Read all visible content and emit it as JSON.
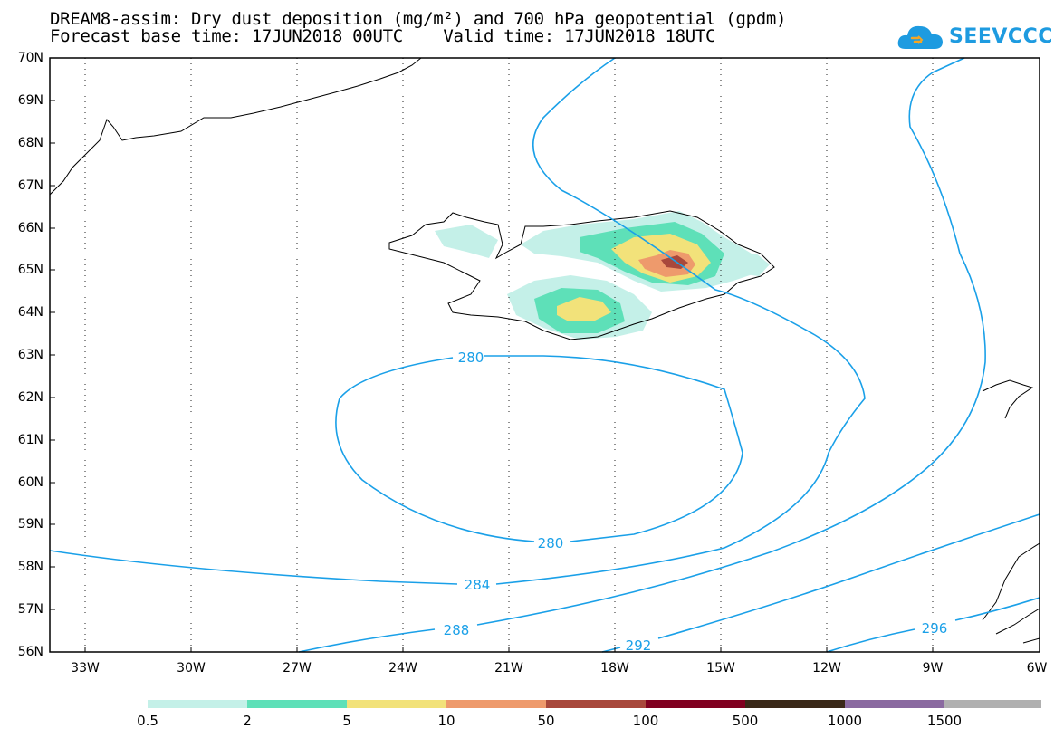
{
  "title_line1": "DREAM8-assim: Dry dust deposition (mg/m²) and 700 hPa geopotential (gpdm)",
  "title_line2": "Forecast base time: 17JUN2018 00UTC    Valid time: 17JUN2018 18UTC",
  "logo_text": "SEEVCCC",
  "lat_labels": [
    "70N",
    "69N",
    "68N",
    "67N",
    "66N",
    "65N",
    "64N",
    "63N",
    "62N",
    "61N",
    "60N",
    "59N",
    "58N",
    "57N",
    "56N"
  ],
  "lon_labels": [
    "33W",
    "30W",
    "27W",
    "24W",
    "21W",
    "18W",
    "15W",
    "12W",
    "9W",
    "6W"
  ],
  "contour_labels": {
    "c280_top": "280",
    "c280_bottom": "280",
    "c284": "284",
    "c288": "288",
    "c292": "292",
    "c296": "296"
  },
  "colorbar": {
    "labels": [
      "0.5",
      "2",
      "5",
      "10",
      "50",
      "100",
      "500",
      "1000",
      "1500"
    ],
    "colors": [
      "#c4f0e8",
      "#5ee0b8",
      "#f2e27a",
      "#ee9a6c",
      "#a8483c",
      "#800020",
      "#3a2818",
      "#8a6aa0",
      "#b0b0b0"
    ]
  },
  "contour_color": "#1aa0e8"
}
